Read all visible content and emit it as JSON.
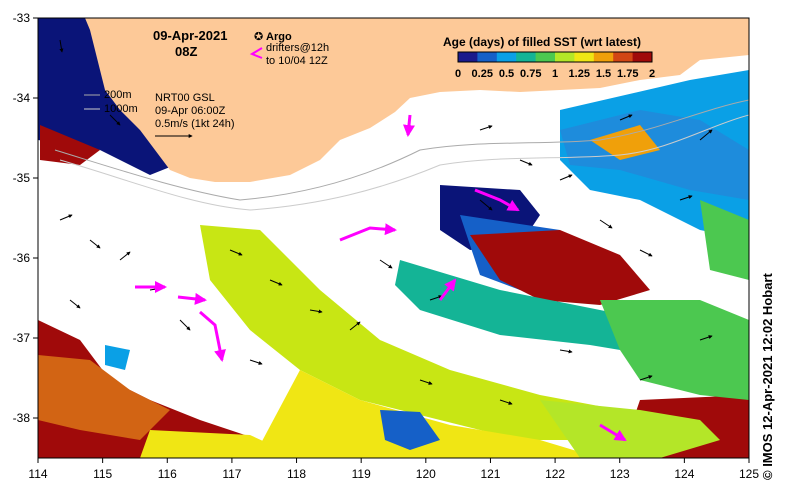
{
  "title": {
    "date": "09-Apr-2021",
    "time": "08Z"
  },
  "legend": {
    "argo_label": "Argo",
    "drifters_line1": "drifters@12h",
    "drifters_line2": "to 10/04 12Z",
    "argo_color": "#ff00ff"
  },
  "scale": {
    "title": "Age (days) of filled SST (wrt latest)",
    "ticks": [
      "0",
      "0.25",
      "0.5",
      "0.75",
      "1",
      "1.25",
      "1.5",
      "1.75",
      "2"
    ],
    "colors": [
      "#1a1a8c",
      "#1560c8",
      "#0aa0e6",
      "#14b496",
      "#4cc850",
      "#b4e628",
      "#f0e614",
      "#f0a00a",
      "#d24614",
      "#a00a0a"
    ]
  },
  "annotations": {
    "depth_200": "200m",
    "depth_1000": "1000m",
    "product": "NRT00 GSL",
    "product_time": "09-Apr 06:00Z",
    "vector_scale": "0.5m/s (1kt 24h)"
  },
  "axes": {
    "y_ticks": [
      "-33",
      "-34",
      "-35",
      "-36",
      "-37",
      "-38"
    ],
    "x_ticks": [
      "114",
      "115",
      "116",
      "117",
      "118",
      "119",
      "120",
      "121",
      "122",
      "123",
      "124",
      "125"
    ]
  },
  "credit": "© IMOS 12-Apr-2021 12:02 Hobart",
  "colors": {
    "land": "#fdc998",
    "deep_water": "#0a1478",
    "frame": "#000000"
  }
}
